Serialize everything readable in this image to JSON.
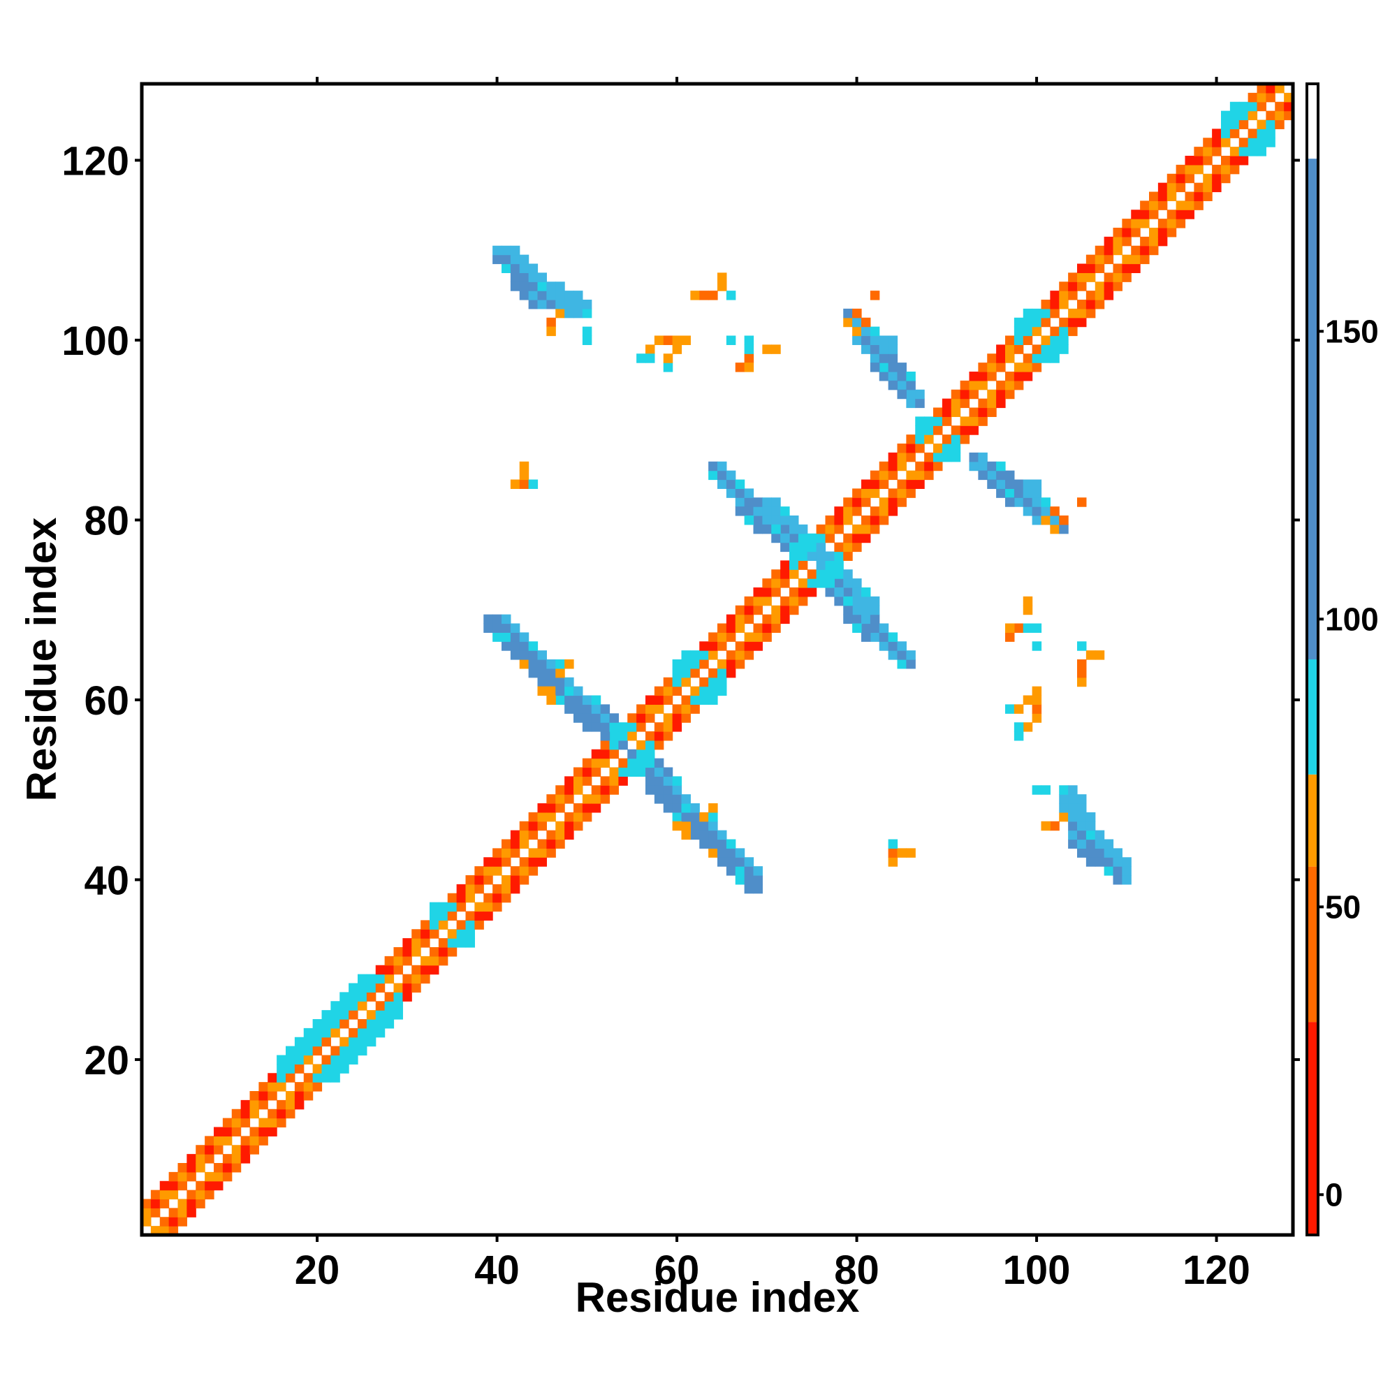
{
  "chart_data": {
    "type": "heatmap",
    "title": "",
    "xlabel": "Residue index",
    "ylabel": "Residue index",
    "xlim": [
      0.5,
      128.5
    ],
    "ylim": [
      0.5,
      128.5
    ],
    "x_ticks": [
      20,
      40,
      60,
      80,
      100,
      120
    ],
    "y_ticks": [
      20,
      40,
      60,
      80,
      100,
      120
    ],
    "colorbar": {
      "ticks": [
        0,
        50,
        100,
        150
      ],
      "range": [
        -7,
        193
      ],
      "bands": [
        {
          "from": -7,
          "to": 30,
          "color": "#ff1a00"
        },
        {
          "from": 30,
          "to": 57,
          "color": "#ff6a00"
        },
        {
          "from": 57,
          "to": 73,
          "color": "#ff9a00"
        },
        {
          "from": 73,
          "to": 93,
          "color": "#20d4e6"
        },
        {
          "from": 93,
          "to": 180,
          "color": "#4f8ec9"
        },
        {
          "from": 180,
          "to": 193,
          "color": "#ffffff"
        }
      ]
    },
    "colors": {
      "red": "#ff1a00",
      "orange": "#ff6a00",
      "amber": "#ff9a00",
      "cyan": "#20d4e6",
      "sky": "#3fb6e3",
      "steel": "#4f8ec9"
    },
    "diagonal": {
      "from": 1,
      "to": 128
    },
    "blocks": [
      {
        "x": [
          40,
          45
        ],
        "y": [
          104,
          110
        ],
        "dir": "anti",
        "color": "steel"
      },
      {
        "x": [
          44,
          50
        ],
        "y": [
          103,
          106
        ],
        "dir": "anti",
        "color": "sky"
      },
      {
        "x": [
          79,
          84
        ],
        "y": [
          96,
          103
        ],
        "dir": "anti",
        "color": "steel"
      },
      {
        "x": [
          84,
          87
        ],
        "y": [
          93,
          97
        ],
        "dir": "anti",
        "color": "sky"
      },
      {
        "x": [
          64,
          70
        ],
        "y": [
          80,
          86
        ],
        "dir": "anti",
        "color": "steel"
      },
      {
        "x": [
          70,
          76
        ],
        "y": [
          76,
          82
        ],
        "dir": "anti",
        "color": "sky"
      },
      {
        "x": [
          94,
          99
        ],
        "y": [
          82,
          86
        ],
        "dir": "anti",
        "color": "steel"
      },
      {
        "x": [
          99,
          102
        ],
        "y": [
          80,
          84
        ],
        "dir": "anti",
        "color": "sky"
      },
      {
        "x": [
          39,
          46
        ],
        "y": [
          62,
          69
        ],
        "dir": "anti",
        "color": "steel"
      },
      {
        "x": [
          46,
          54
        ],
        "y": [
          55,
          62
        ],
        "dir": "anti",
        "color": "steel"
      },
      {
        "x": [
          76,
          82
        ],
        "y": [
          67,
          74
        ],
        "dir": "anti",
        "color": "steel"
      },
      {
        "x": [
          82,
          86
        ],
        "y": [
          64,
          68
        ],
        "dir": "anti",
        "color": "sky"
      },
      {
        "x": [
          56,
          63
        ],
        "y": [
          46,
          54
        ],
        "dir": "anti",
        "color": "steel"
      },
      {
        "x": [
          63,
          69
        ],
        "y": [
          40,
          46
        ],
        "dir": "anti",
        "color": "steel"
      },
      {
        "x": [
          104,
          110
        ],
        "y": [
          41,
          47
        ],
        "dir": "anti",
        "color": "sky"
      },
      {
        "x": [
          16,
          29
        ],
        "y": [
          18,
          29
        ],
        "dir": "diag",
        "color": "cyan"
      },
      {
        "x": [
          33,
          37
        ],
        "y": [
          33,
          37
        ],
        "dir": "diag",
        "color": "cyan"
      },
      {
        "x": [
          87,
          91
        ],
        "y": [
          87,
          91
        ],
        "dir": "diag",
        "color": "cyan"
      },
      {
        "x": [
          98,
          103
        ],
        "y": [
          98,
          103
        ],
        "dir": "diag",
        "color": "cyan"
      },
      {
        "x": [
          60,
          65
        ],
        "y": [
          60,
          65
        ],
        "dir": "diag",
        "color": "cyan"
      },
      {
        "x": [
          53,
          57
        ],
        "y": [
          52,
          57
        ],
        "dir": "diag",
        "color": "cyan"
      },
      {
        "x": [
          73,
          78
        ],
        "y": [
          73,
          78
        ],
        "dir": "diag",
        "color": "cyan"
      },
      {
        "x": [
          121,
          126
        ],
        "y": [
          121,
          126
        ],
        "dir": "diag",
        "color": "cyan"
      }
    ],
    "points": [
      [
        46,
        102,
        "amber"
      ],
      [
        46,
        101,
        "amber"
      ],
      [
        47,
        103,
        "amber"
      ],
      [
        50,
        100,
        "cyan"
      ],
      [
        50,
        101,
        "cyan"
      ],
      [
        62,
        105,
        "orange"
      ],
      [
        63,
        105,
        "orange"
      ],
      [
        65,
        106,
        "amber"
      ],
      [
        65,
        107,
        "amber"
      ],
      [
        66,
        105,
        "cyan"
      ],
      [
        57,
        99,
        "amber"
      ],
      [
        58,
        100,
        "amber"
      ],
      [
        59,
        100,
        "orange"
      ],
      [
        60,
        100,
        "amber"
      ],
      [
        56,
        98,
        "cyan"
      ],
      [
        57,
        98,
        "cyan"
      ],
      [
        66,
        100,
        "cyan"
      ],
      [
        68,
        100,
        "cyan"
      ],
      [
        68,
        98,
        "amber"
      ],
      [
        67,
        97,
        "orange"
      ],
      [
        70,
        99,
        "amber"
      ],
      [
        71,
        99,
        "amber"
      ],
      [
        79,
        102,
        "amber"
      ],
      [
        82,
        105,
        "amber"
      ],
      [
        80,
        103,
        "orange"
      ],
      [
        42,
        84,
        "amber"
      ],
      [
        43,
        84,
        "amber"
      ],
      [
        43,
        85,
        "orange"
      ],
      [
        44,
        84,
        "cyan"
      ],
      [
        43,
        64,
        "amber"
      ],
      [
        45,
        61,
        "amber"
      ],
      [
        46,
        61,
        "amber"
      ],
      [
        47,
        63,
        "amber"
      ],
      [
        47,
        64,
        "cyan"
      ],
      [
        60,
        46,
        "amber"
      ],
      [
        61,
        45,
        "amber"
      ],
      [
        60,
        47,
        "cyan"
      ],
      [
        64,
        48,
        "amber"
      ],
      [
        84,
        44,
        "cyan"
      ],
      [
        84,
        43,
        "orange"
      ],
      [
        84,
        42,
        "amber"
      ],
      [
        85,
        43,
        "amber"
      ],
      [
        86,
        43,
        "amber"
      ],
      [
        100,
        50,
        "cyan"
      ],
      [
        101,
        50,
        "cyan"
      ],
      [
        103,
        50,
        "cyan"
      ],
      [
        101,
        46,
        "amber"
      ],
      [
        102,
        46,
        "orange"
      ],
      [
        103,
        47,
        "amber"
      ],
      [
        97,
        59,
        "cyan"
      ],
      [
        98,
        59,
        "amber"
      ],
      [
        99,
        60,
        "amber"
      ],
      [
        100,
        61,
        "amber"
      ],
      [
        97,
        68,
        "amber"
      ],
      [
        98,
        68,
        "orange"
      ],
      [
        99,
        68,
        "cyan"
      ],
      [
        100,
        68,
        "cyan"
      ],
      [
        99,
        71,
        "amber"
      ],
      [
        100,
        66,
        "cyan"
      ],
      [
        105,
        66,
        "cyan"
      ],
      [
        105,
        64,
        "orange"
      ],
      [
        106,
        65,
        "amber"
      ],
      [
        107,
        65,
        "amber"
      ],
      [
        105,
        62,
        "amber"
      ],
      [
        101,
        80,
        "amber"
      ],
      [
        102,
        81,
        "orange"
      ],
      [
        105,
        82,
        "orange"
      ]
    ]
  }
}
